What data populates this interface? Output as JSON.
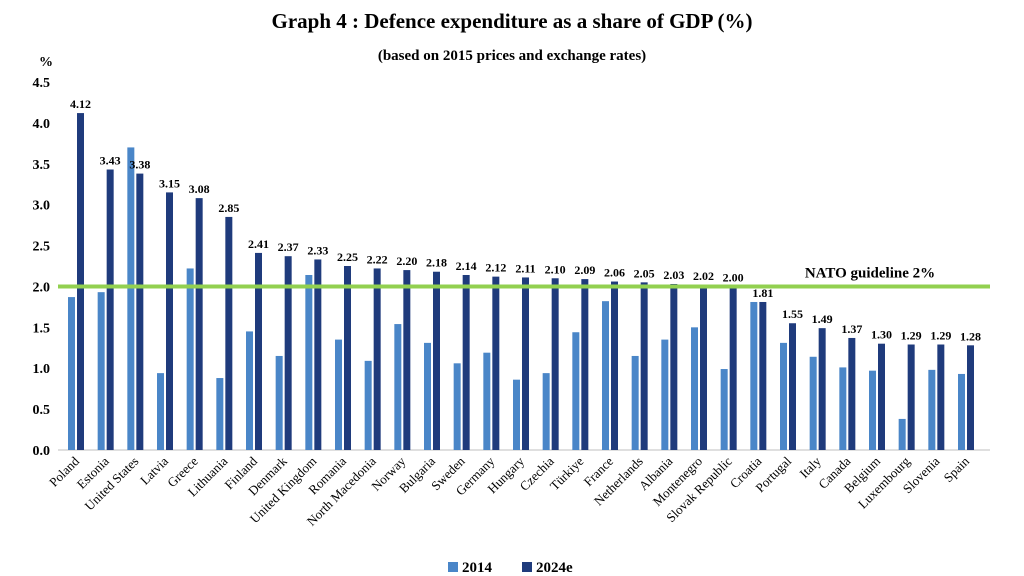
{
  "chart_data": {
    "type": "bar",
    "title": "Graph 4 : Defence expenditure as a share of GDP (%)",
    "subtitle": "(based on 2015 prices and exchange rates)",
    "ylabel": "%",
    "xlabel": "",
    "ylim": [
      0,
      4.5
    ],
    "yticks": [
      "0.0",
      "0.5",
      "1.0",
      "1.5",
      "2.0",
      "2.5",
      "3.0",
      "3.5",
      "4.0",
      "4.5"
    ],
    "grid": false,
    "legend_position": "bottom",
    "categories": [
      "Poland",
      "Estonia",
      "United States",
      "Latvia",
      "Greece",
      "Lithuania",
      "Finland",
      "Denmark",
      "United Kingdom",
      "Romania",
      "North Macedonia",
      "Norway",
      "Bulgaria",
      "Sweden",
      "Germany",
      "Hungary",
      "Czechia",
      "Türkiye",
      "France",
      "Netherlands",
      "Albania",
      "Montenegro",
      "Slovak Republic",
      "Croatia",
      "Portugal",
      "Italy",
      "Canada",
      "Belgium",
      "Luxembourg",
      "Slovenia",
      "Spain"
    ],
    "series": [
      {
        "name": "2014",
        "color": "#4a86c8",
        "values": [
          1.87,
          1.93,
          3.7,
          0.94,
          2.22,
          0.88,
          1.45,
          1.15,
          2.14,
          1.35,
          1.09,
          1.54,
          1.31,
          1.06,
          1.19,
          0.86,
          0.94,
          1.44,
          1.82,
          1.15,
          1.35,
          1.5,
          0.99,
          1.81,
          1.31,
          1.14,
          1.01,
          0.97,
          0.38,
          0.98,
          0.93
        ]
      },
      {
        "name": "2024e",
        "color": "#1f3b7c",
        "values": [
          4.12,
          3.43,
          3.38,
          3.15,
          3.08,
          2.85,
          2.41,
          2.37,
          2.33,
          2.25,
          2.22,
          2.2,
          2.18,
          2.14,
          2.12,
          2.11,
          2.1,
          2.09,
          2.06,
          2.05,
          2.03,
          2.02,
          2.0,
          1.81,
          1.55,
          1.49,
          1.37,
          1.3,
          1.29,
          1.29,
          1.28
        ],
        "labels": [
          "4.12",
          "3.43",
          "3.38",
          "3.15",
          "3.08",
          "2.85",
          "2.41",
          "2.37",
          "2.33",
          "2.25",
          "2.22",
          "2.20",
          "2.18",
          "2.14",
          "2.12",
          "2.11",
          "2.10",
          "2.09",
          "2.06",
          "2.05",
          "2.03",
          "2.02",
          "2.00",
          "1.81",
          "1.55",
          "1.49",
          "1.37",
          "1.30",
          "1.29",
          "1.29",
          "1.28"
        ]
      }
    ],
    "reference_line": {
      "value": 2.0,
      "label": "NATO guideline 2%",
      "color": "#92d050"
    }
  }
}
